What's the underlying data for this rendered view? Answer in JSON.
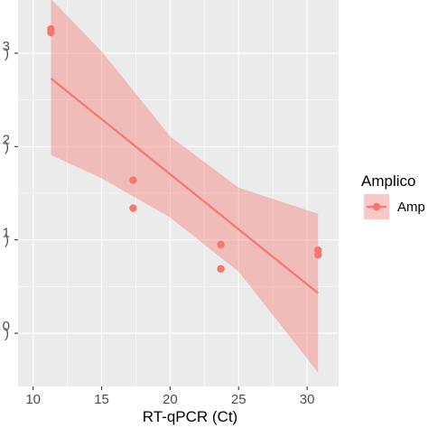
{
  "chart_data": {
    "type": "scatter",
    "xlabel": "RT-qPCR (Ct)",
    "ylabel": "",
    "xlim": [
      8.9,
      32.3
    ],
    "ylim": [
      -0.57,
      3.57
    ],
    "y_scale": "log10",
    "x_ticks": [
      10,
      15,
      20,
      25,
      30
    ],
    "x_tick_labels": [
      "10",
      "15",
      "20",
      "25",
      "30"
    ],
    "y_ticks": [
      0,
      1,
      2,
      3
    ],
    "y_tick_labels": [
      "0",
      "1",
      "2",
      "3"
    ],
    "y_tick_label_prefix_visible": ")",
    "grid": true,
    "legend_placement": "right",
    "legend_title": "Amplico",
    "series": [
      {
        "name": "Amp",
        "color": "#F8766D",
        "points": [
          {
            "x": 11.3,
            "y": 3.26
          },
          {
            "x": 11.3,
            "y": 3.22
          },
          {
            "x": 17.3,
            "y": 1.64
          },
          {
            "x": 17.3,
            "y": 1.34
          },
          {
            "x": 23.7,
            "y": 0.95
          },
          {
            "x": 23.7,
            "y": 0.69
          },
          {
            "x": 30.8,
            "y": 0.89
          },
          {
            "x": 30.8,
            "y": 0.84
          }
        ],
        "fit_line": {
          "x": [
            11.3,
            30.8
          ],
          "y": [
            2.73,
            0.43
          ]
        },
        "confidence_band": {
          "x": [
            11.3,
            15,
            20,
            25,
            30.8
          ],
          "lower": [
            1.91,
            1.66,
            1.24,
            0.66,
            -0.42
          ],
          "upper": [
            3.58,
            3.02,
            2.11,
            1.56,
            1.28
          ]
        }
      }
    ]
  }
}
